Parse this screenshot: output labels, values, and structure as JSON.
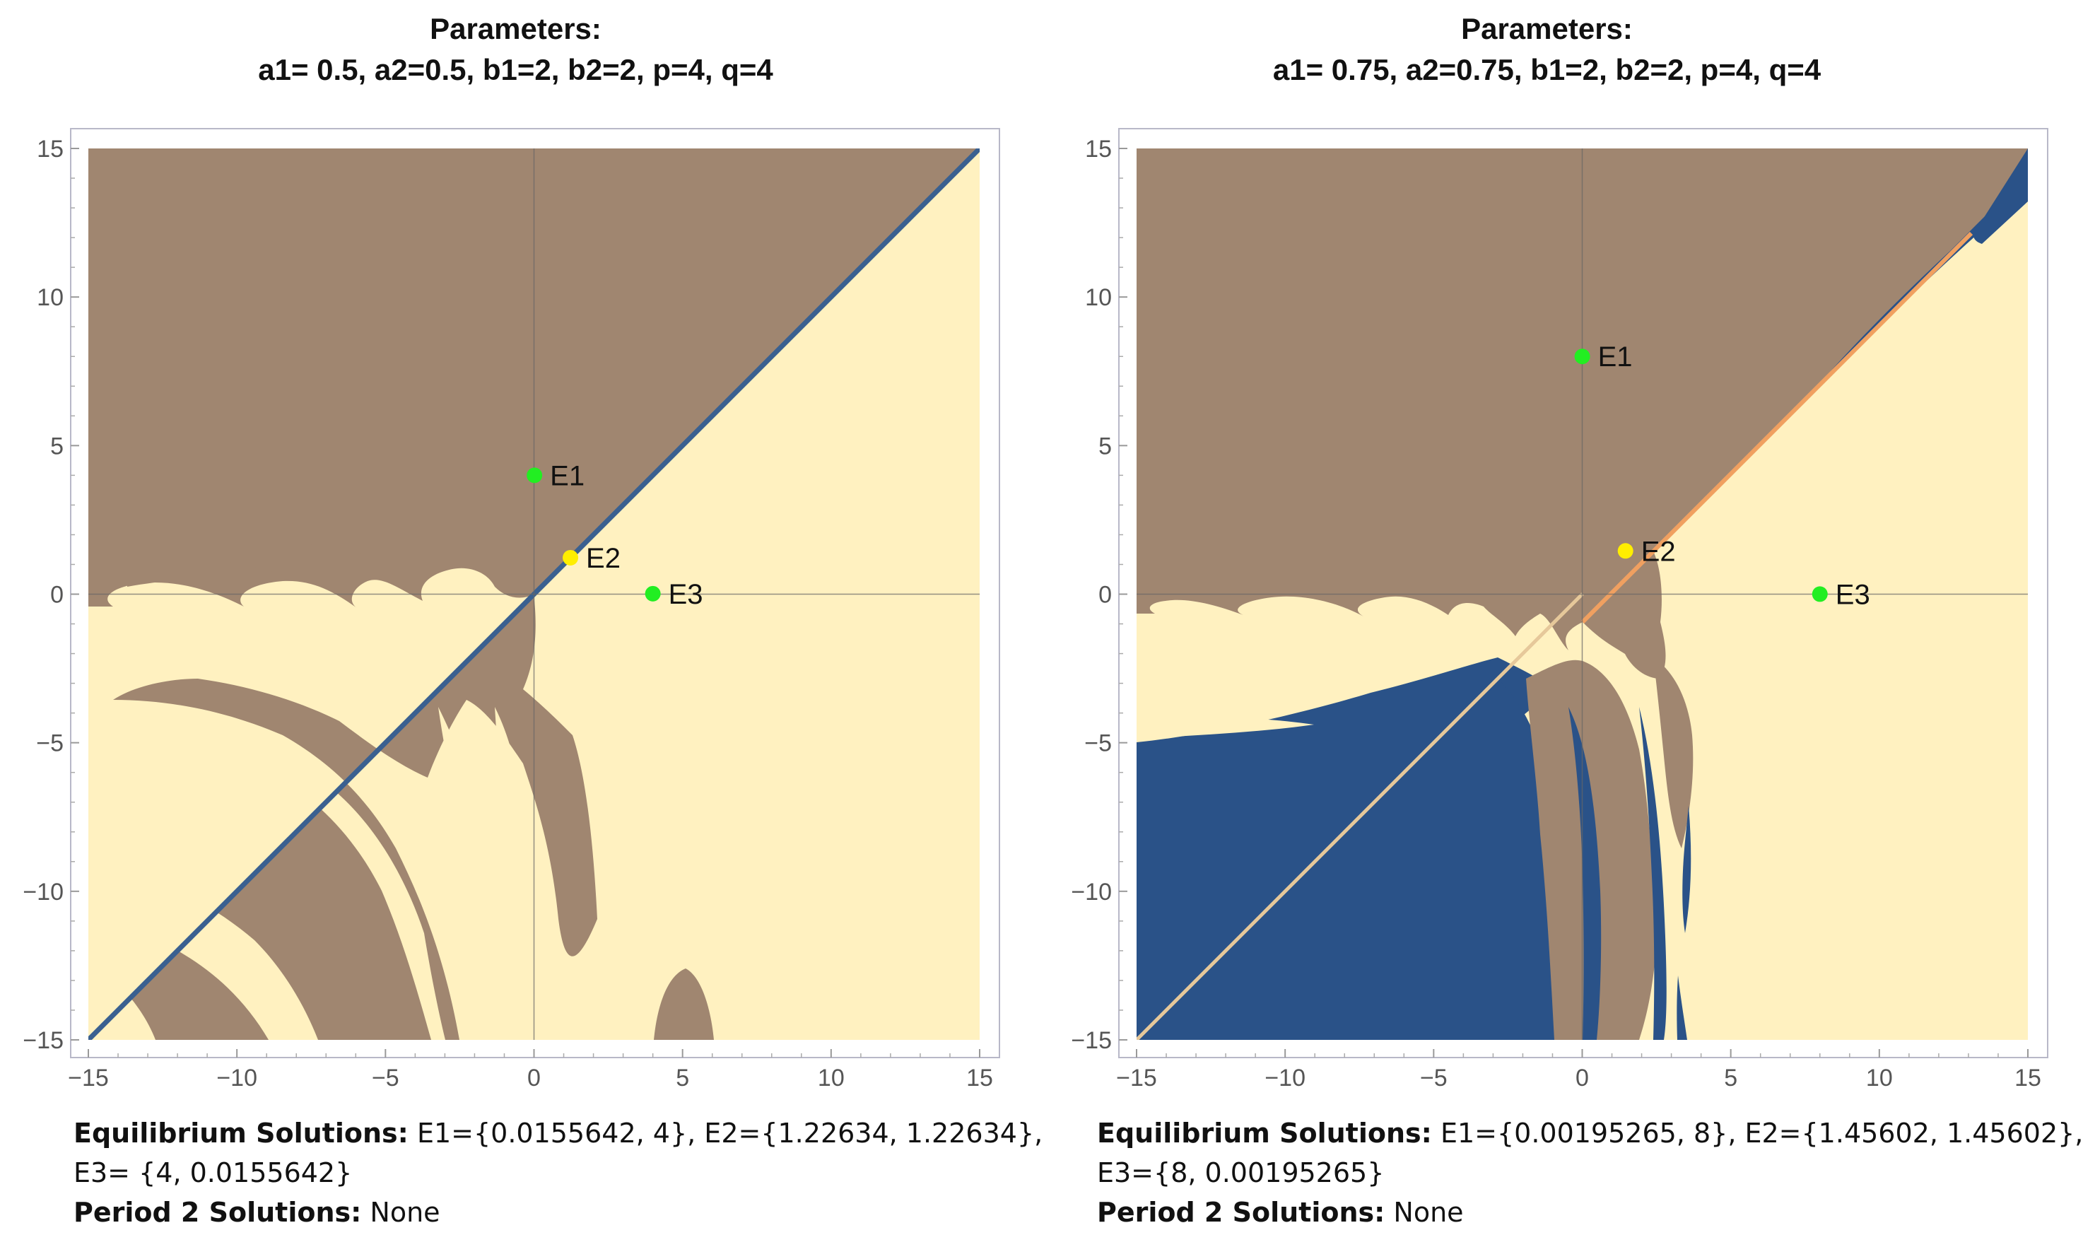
{
  "colors": {
    "brown": "#a08670",
    "cream": "#fff1c0",
    "blue": "#2a5288",
    "green": "#22ee22",
    "yellow": "#ffee00",
    "orange_diag": "#f0a060"
  },
  "chart_data": [
    {
      "type": "heatmap",
      "title_line1": "Parameters:",
      "title_line2": "a1= 0.5, a2=0.5, b1=2, b2=2, p=4, q=4",
      "xlim": [
        -15,
        15
      ],
      "ylim": [
        -15,
        15
      ],
      "x_ticks": [
        -15,
        -10,
        -5,
        0,
        5,
        10,
        15
      ],
      "y_ticks": [
        -15,
        -10,
        -5,
        0,
        5,
        10,
        15
      ],
      "x_tick_labels": [
        "−15",
        "−10",
        "−5",
        "0",
        "5",
        "10",
        "15"
      ],
      "y_tick_labels": [
        "−15",
        "−10",
        "−5",
        "0",
        "5",
        "10",
        "15"
      ],
      "points": [
        {
          "label": "E1",
          "x": 0.0155642,
          "y": 4,
          "color": "green"
        },
        {
          "label": "E2",
          "x": 1.22634,
          "y": 1.22634,
          "color": "yellow"
        },
        {
          "label": "E3",
          "x": 4,
          "y": 0.0155642,
          "color": "green"
        }
      ],
      "footer": {
        "eq_label": "Equilibrium Solutions:",
        "eq_text_line1": " E1={0.0155642, 4}, E2={1.22634, 1.22634},",
        "eq_text_line2": "E3= {4, 0.0155642}",
        "p2_label": "Period 2 Solutions:",
        "p2_text": " None"
      }
    },
    {
      "type": "heatmap",
      "title_line1": "Parameters:",
      "title_line2": "a1= 0.75, a2=0.75, b1=2, b2=2, p=4, q=4",
      "xlim": [
        -15,
        15
      ],
      "ylim": [
        -15,
        15
      ],
      "x_ticks": [
        -15,
        -10,
        -5,
        0,
        5,
        10,
        15
      ],
      "y_ticks": [
        -15,
        -10,
        -5,
        0,
        5,
        10,
        15
      ],
      "x_tick_labels": [
        "−15",
        "−10",
        "−5",
        "0",
        "5",
        "10",
        "15"
      ],
      "y_tick_labels": [
        "−15",
        "−10",
        "−5",
        "0",
        "5",
        "10",
        "15"
      ],
      "points": [
        {
          "label": "E1",
          "x": 0.00195265,
          "y": 8,
          "color": "green"
        },
        {
          "label": "E2",
          "x": 1.45602,
          "y": 1.45602,
          "color": "yellow"
        },
        {
          "label": "E3",
          "x": 8,
          "y": 0.00195265,
          "color": "green"
        }
      ],
      "footer": {
        "eq_label": "Equilibrium Solutions:",
        "eq_text_line1": " E1={0.00195265, 8}, E2={1.45602, 1.45602},",
        "eq_text_line2": "E3={8, 0.00195265}",
        "p2_label": "Period 2 Solutions:",
        "p2_text": " None"
      }
    }
  ]
}
